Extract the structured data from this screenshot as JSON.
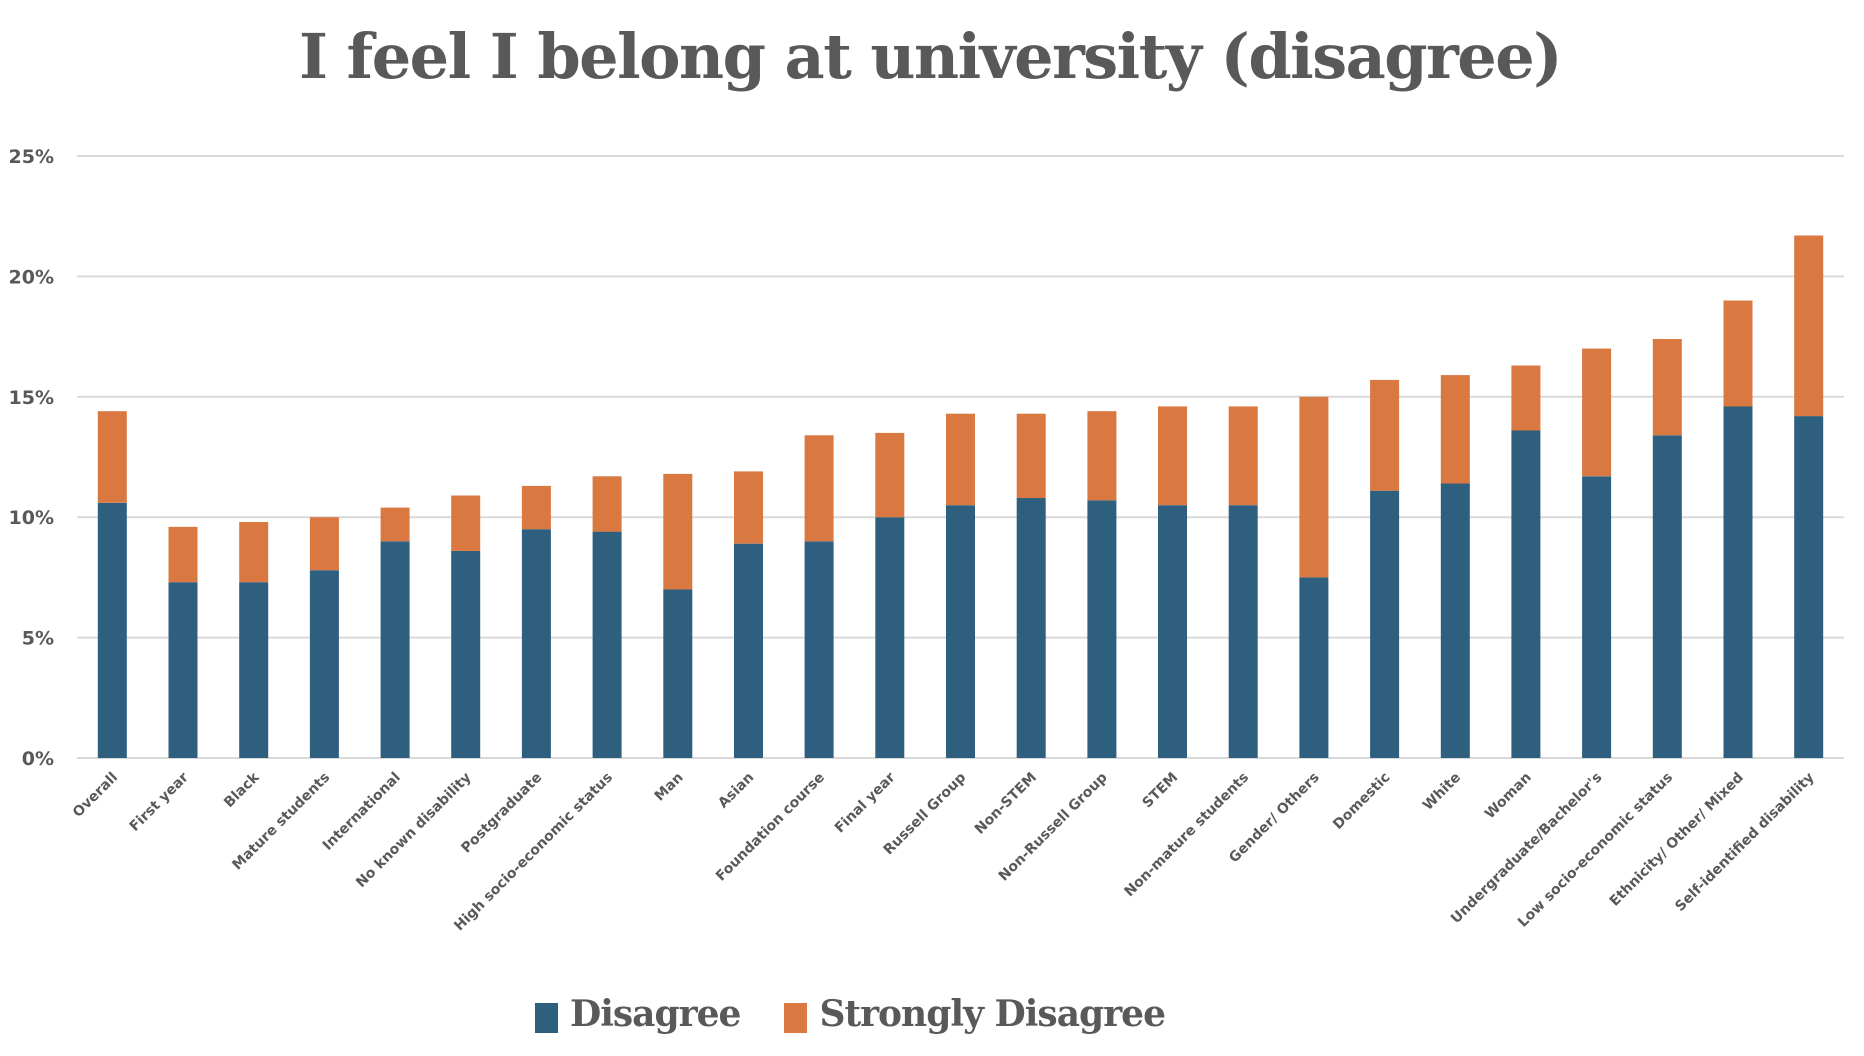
{
  "colors": {
    "disagree": "#2e5f7f",
    "strongly_disagree": "#d97841",
    "text": "#595959",
    "grid": "#d9d9d9"
  },
  "chart_data": {
    "type": "bar",
    "stacked": true,
    "title": "I feel I belong at university (disagree)",
    "xlabel": "",
    "ylabel": "",
    "ylim": [
      0,
      25
    ],
    "yticks": [
      0,
      5,
      10,
      15,
      20,
      25
    ],
    "ytick_labels": [
      "0%",
      "5%",
      "10%",
      "15%",
      "20%",
      "25%"
    ],
    "grid": true,
    "legend_position": "bottom",
    "categories": [
      "Overall",
      "First year",
      "Black",
      "Mature students",
      "International",
      "No known disability",
      "Postgraduate",
      "High socio-economic status",
      "Man",
      "Asian",
      "Foundation course",
      "Final year",
      "Russell Group",
      "Non-STEM",
      "Non-Russell Group",
      "STEM",
      "Non-mature students",
      "Gender/ Others",
      "Domestic",
      "White",
      "Woman",
      "Undergraduate/Bachelor's",
      "Low socio-economic status",
      "Ethnicity/ Other/ Mixed",
      "Self-identified disability"
    ],
    "series": [
      {
        "name": "Disagree",
        "color": "#2e5f7f",
        "values": [
          10.6,
          7.3,
          7.3,
          7.8,
          9.0,
          8.6,
          9.5,
          9.4,
          7.0,
          8.9,
          9.0,
          10.0,
          10.5,
          10.8,
          10.7,
          10.5,
          10.5,
          7.5,
          11.1,
          11.4,
          13.6,
          11.7,
          13.4,
          14.6,
          14.2
        ]
      },
      {
        "name": "Strongly Disagree",
        "color": "#d97841",
        "values": [
          3.8,
          2.3,
          2.5,
          2.2,
          1.4,
          2.3,
          1.8,
          2.3,
          4.8,
          3.0,
          4.4,
          3.5,
          3.8,
          3.5,
          3.7,
          4.1,
          4.1,
          7.5,
          4.6,
          4.5,
          2.7,
          5.3,
          4.0,
          4.4,
          7.5
        ]
      }
    ]
  },
  "legend": {
    "items": [
      {
        "label": "Disagree",
        "color": "#2e5f7f"
      },
      {
        "label": "Strongly Disagree",
        "color": "#d97841"
      }
    ]
  }
}
